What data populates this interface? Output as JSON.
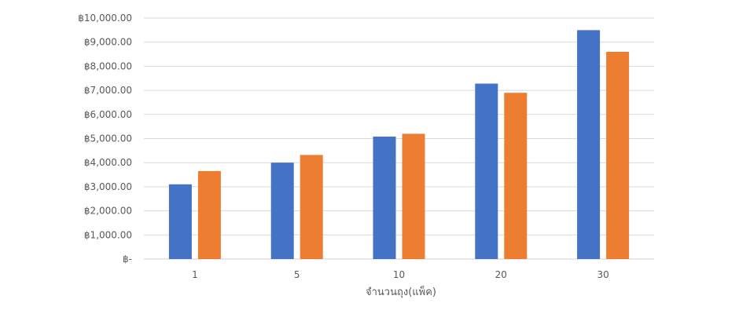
{
  "chart_data": {
    "type": "bar",
    "title": "",
    "xlabel": "จำนวนถุง(แพ็ค)",
    "ylabel": "",
    "categories": [
      "1",
      "5",
      "10",
      "20",
      "30"
    ],
    "series": [
      {
        "values": [
          3100,
          4000,
          5080,
          7280,
          9500
        ]
      },
      {
        "values": [
          3650,
          4320,
          5200,
          6900,
          8600
        ]
      }
    ],
    "ylim": [
      0,
      10000
    ],
    "yticks": [
      0,
      1000,
      2000,
      3000,
      4000,
      5000,
      6000,
      7000,
      8000,
      9000,
      10000
    ],
    "ytick_labels": [
      "฿-",
      "฿1,000.00",
      "฿2,000.00",
      "฿3,000.00",
      "฿4,000.00",
      "฿5,000.00",
      "฿6,000.00",
      "฿7,000.00",
      "฿8,000.00",
      "฿9,000.00",
      "฿10,000.00"
    ],
    "colors": [
      "#4472C4",
      "#ED7D31"
    ],
    "gridline_color": "#d9d9d9",
    "grid": true,
    "legend": "none"
  }
}
